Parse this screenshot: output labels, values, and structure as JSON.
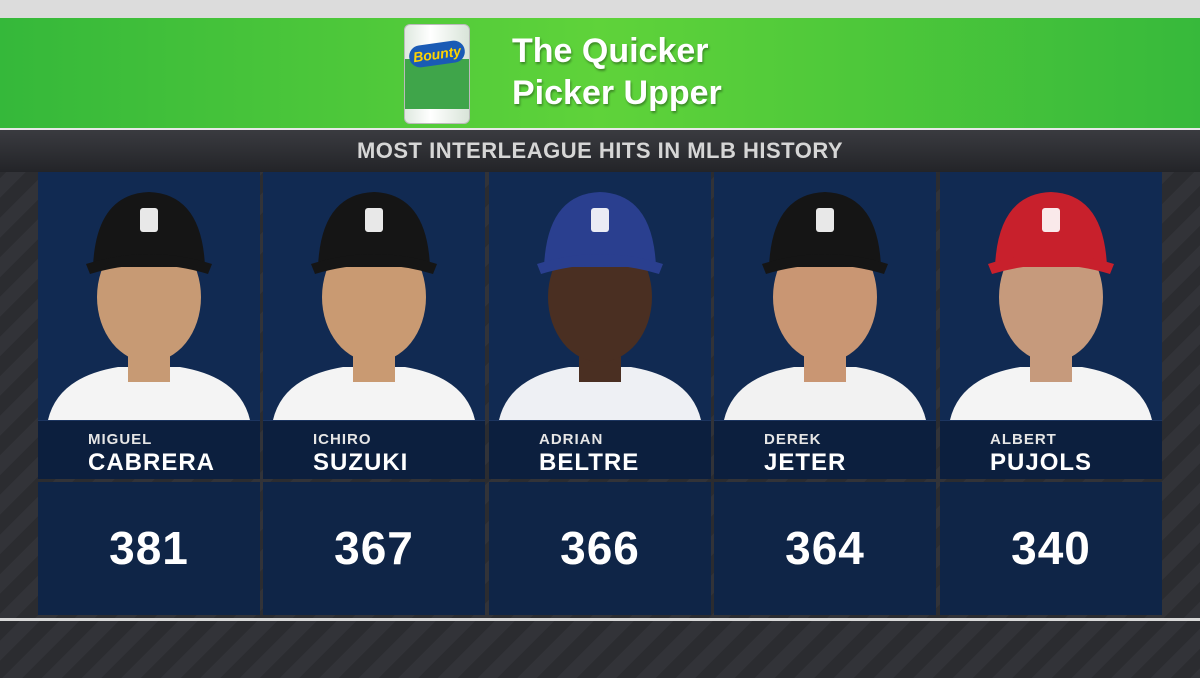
{
  "sponsor": {
    "brand": "Bounty",
    "tagline": [
      "The Quicker",
      "Picker Upper"
    ]
  },
  "title": "MOST INTERLEAGUE HITS IN MLB HISTORY",
  "players": [
    {
      "first": "MIGUEL",
      "last": "CABRERA",
      "hits": 381
    },
    {
      "first": "ICHIRO",
      "last": "SUZUKI",
      "hits": 367
    },
    {
      "first": "ADRIAN",
      "last": "BELTRE",
      "hits": 366
    },
    {
      "first": "DEREK",
      "last": "JETER",
      "hits": 364
    },
    {
      "first": "ALBERT",
      "last": "PUJOLS",
      "hits": 340
    }
  ]
}
